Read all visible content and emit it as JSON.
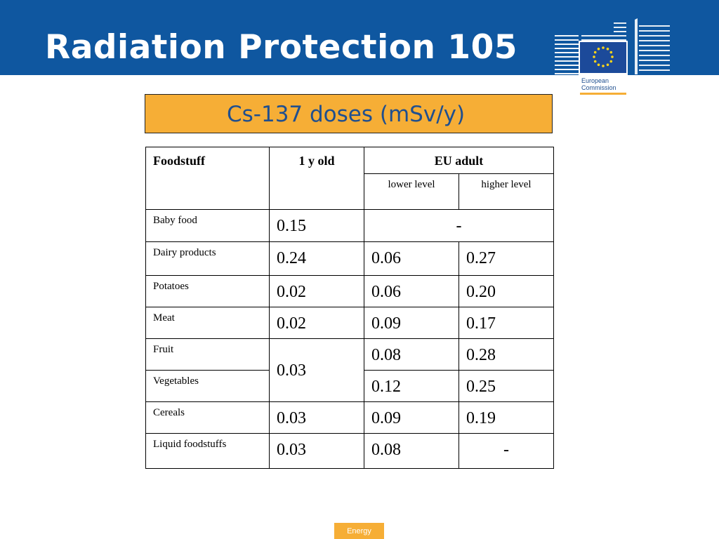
{
  "slide": {
    "title": "Radiation Protection 105",
    "subtitle": "Cs-137 doses (mSv/y)",
    "footer": "Energy"
  },
  "logo": {
    "line1": "European",
    "line2": "Commission",
    "icon": "eu-flag-stars-icon"
  },
  "table": {
    "headers": {
      "foodstuff": "Foodstuff",
      "one_year_old": "1 y old",
      "eu_adult": "EU adult",
      "lower_level": "lower level",
      "higher_level": "higher level"
    },
    "rows": [
      {
        "food": "Baby food",
        "one_year_old": "0.15",
        "eu_adult": "-"
      },
      {
        "food": "Dairy products",
        "one_year_old": "0.24",
        "lower": "0.06",
        "higher": "0.27"
      },
      {
        "food": "Potatoes",
        "one_year_old": "0.02",
        "lower": "0.06",
        "higher": "0.20"
      },
      {
        "food": "Meat",
        "one_year_old": "0.02",
        "lower": "0.09",
        "higher": "0.17"
      },
      {
        "food": "Fruit",
        "one_year_old": "0.03",
        "lower": "0.08",
        "higher": "0.28"
      },
      {
        "food": "Vegetables",
        "lower": "0.12",
        "higher": "0.25"
      },
      {
        "food": "Cereals",
        "one_year_old": "0.03",
        "lower": "0.09",
        "higher": "0.19"
      },
      {
        "food": "Liquid foodstuffs",
        "one_year_old": "0.03",
        "lower": "0.08",
        "higher": "-"
      }
    ]
  },
  "colors": {
    "header_blue": "#0f57a0",
    "accent_orange": "#f6ae36",
    "subtitle_text": "#1f4f8f"
  }
}
